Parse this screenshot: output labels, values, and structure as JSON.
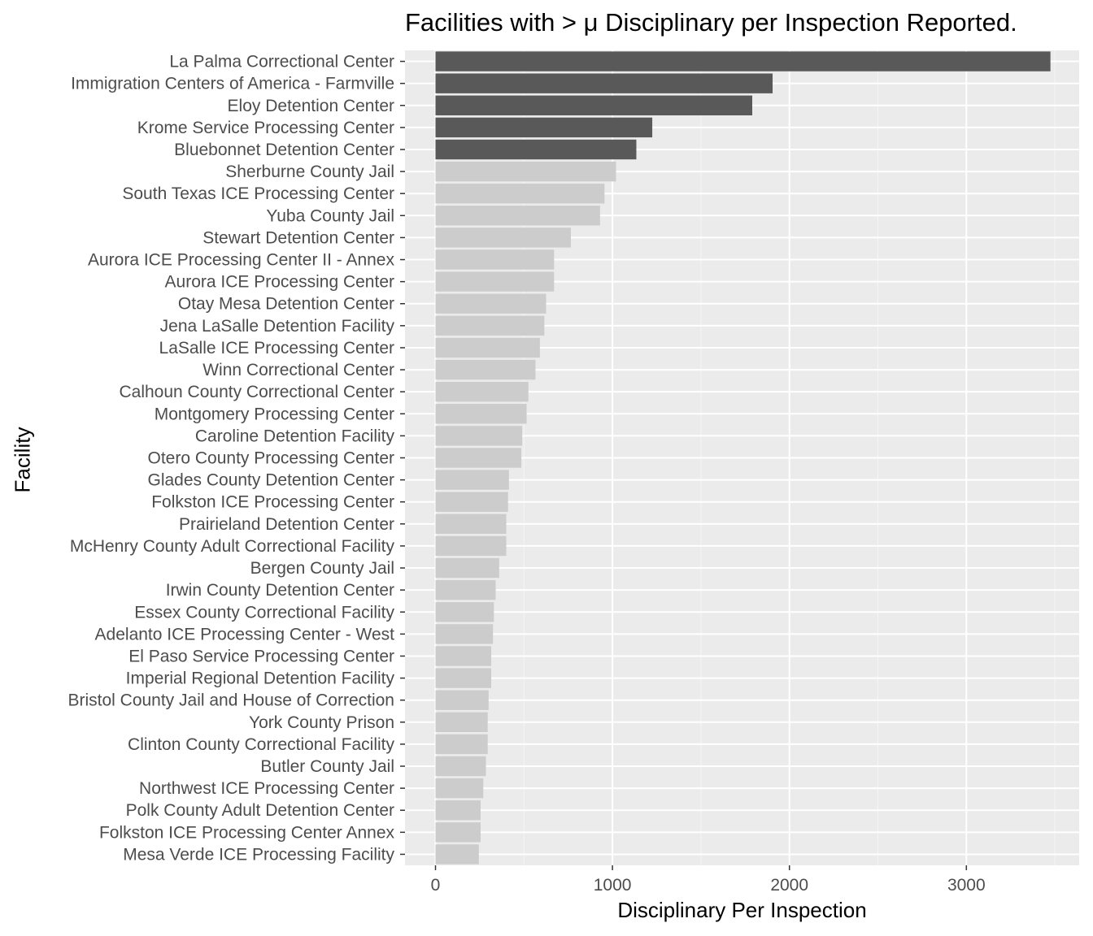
{
  "chart_data": {
    "type": "bar",
    "orientation": "horizontal",
    "title": "Facilities with > μ Disciplinary per Inspection Reported.",
    "xlabel": "Disciplinary Per Inspection",
    "ylabel": "Facility",
    "xlim": [
      -170,
      3650
    ],
    "xticks": [
      "0",
      "1000",
      "2000",
      "3000"
    ],
    "grid": true,
    "colors": {
      "panel": "#ebebeb",
      "grid_major": "#ffffff",
      "grid_minor": "#f5f5f5",
      "highlight": "#595959",
      "normal": "#cccccc",
      "tick_label": "#4d4d4d",
      "tick": "#333333"
    },
    "categories": [
      "La Palma Correctional Center",
      "Immigration Centers of America - Farmville",
      "Eloy Detention Center",
      "Krome Service Processing Center",
      "Bluebonnet Detention Center",
      "Sherburne County Jail",
      "South Texas ICE Processing Center",
      "Yuba County Jail",
      "Stewart Detention Center",
      "Aurora ICE Processing Center II - Annex",
      "Aurora ICE Processing Center",
      "Otay Mesa Detention Center",
      "Jena LaSalle Detention Facility",
      "LaSalle ICE Processing Center",
      "Winn Correctional Center",
      "Calhoun County Correctional Center",
      "Montgomery Processing Center",
      "Caroline Detention Facility",
      "Otero County Processing Center",
      "Glades County Detention Center",
      "Folkston ICE Processing Center",
      "Prairieland Detention Center",
      "McHenry County Adult Correctional Facility",
      "Bergen County Jail",
      "Irwin County Detention Center",
      "Essex County Correctional Facility",
      "Adelanto ICE Processing Center - West",
      "El Paso Service Processing Center",
      "Imperial Regional Detention Facility",
      "Bristol County Jail and House of Correction",
      "York County Prison",
      "Clinton County Correctional Facility",
      "Butler County Jail",
      "Northwest ICE Processing Center",
      "Polk County Adult Detention Center",
      "Folkston ICE Processing Center Annex",
      "Mesa Verde ICE Processing Facility"
    ],
    "values": [
      3475,
      1905,
      1790,
      1225,
      1135,
      1020,
      955,
      930,
      765,
      670,
      670,
      625,
      615,
      590,
      565,
      525,
      515,
      490,
      485,
      415,
      410,
      400,
      400,
      360,
      340,
      330,
      325,
      315,
      315,
      300,
      295,
      295,
      285,
      270,
      255,
      255,
      245
    ],
    "highlighted": [
      true,
      true,
      true,
      true,
      true,
      false,
      false,
      false,
      false,
      false,
      false,
      false,
      false,
      false,
      false,
      false,
      false,
      false,
      false,
      false,
      false,
      false,
      false,
      false,
      false,
      false,
      false,
      false,
      false,
      false,
      false,
      false,
      false,
      false,
      false,
      false,
      false
    ]
  }
}
